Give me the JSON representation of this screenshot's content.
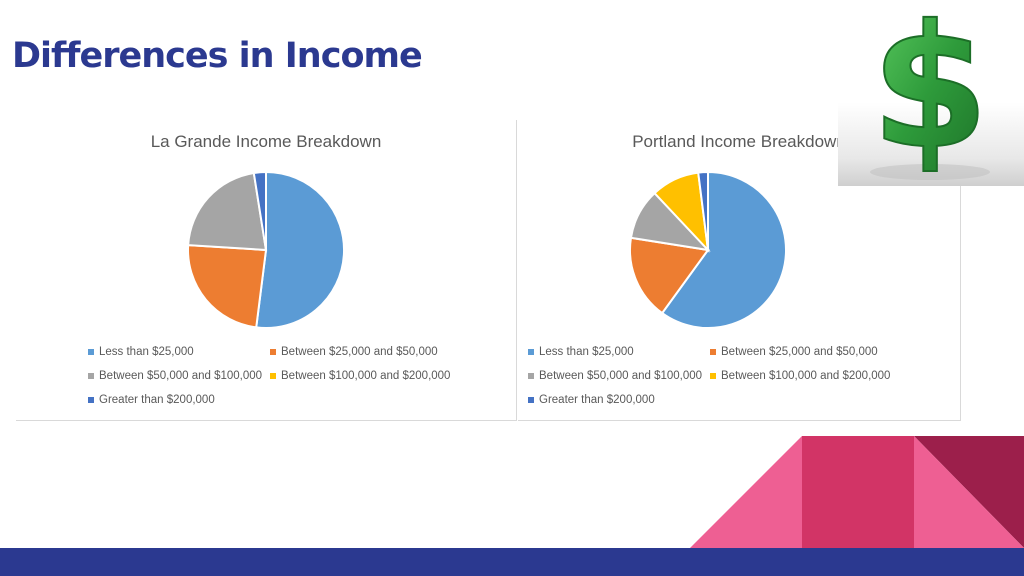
{
  "slide": {
    "title": "Differences in Income"
  },
  "colors": {
    "title": "#2b3990",
    "series": [
      "#5b9bd5",
      "#ed7d31",
      "#a5a5a5",
      "#ffc000",
      "#4472c4"
    ],
    "bottom_bar": "#2b3990",
    "triangle_pink": "#ee5f93",
    "triangle_magenta": "#d23466",
    "triangle_maroon": "#9c1f4b",
    "dollar_green": "#2e9b3b"
  },
  "icons": {
    "dollar": "dollar-sign-icon"
  },
  "chart_data": [
    {
      "type": "pie",
      "title": "La Grande Income Breakdown",
      "categories": [
        "Less than $25,000",
        "Between $25,000 and $50,000",
        "Between $50,000 and $100,000",
        "Between $100,000 and $200,000",
        "Greater than $200,000"
      ],
      "values": [
        52,
        24,
        21.5,
        0,
        2.5
      ],
      "colors": [
        "#5b9bd5",
        "#ed7d31",
        "#a5a5a5",
        "#ffc000",
        "#4472c4"
      ],
      "legend_position": "bottom"
    },
    {
      "type": "pie",
      "title": "Portland Income Breakdown",
      "categories": [
        "Less than $25,000",
        "Between $25,000 and $50,000",
        "Between $50,000 and $100,000",
        "Between $100,000 and $200,000",
        "Greater than $200,000"
      ],
      "values": [
        60,
        17.5,
        10.5,
        10,
        2
      ],
      "colors": [
        "#5b9bd5",
        "#ed7d31",
        "#a5a5a5",
        "#ffc000",
        "#4472c4"
      ],
      "legend_position": "bottom"
    }
  ]
}
